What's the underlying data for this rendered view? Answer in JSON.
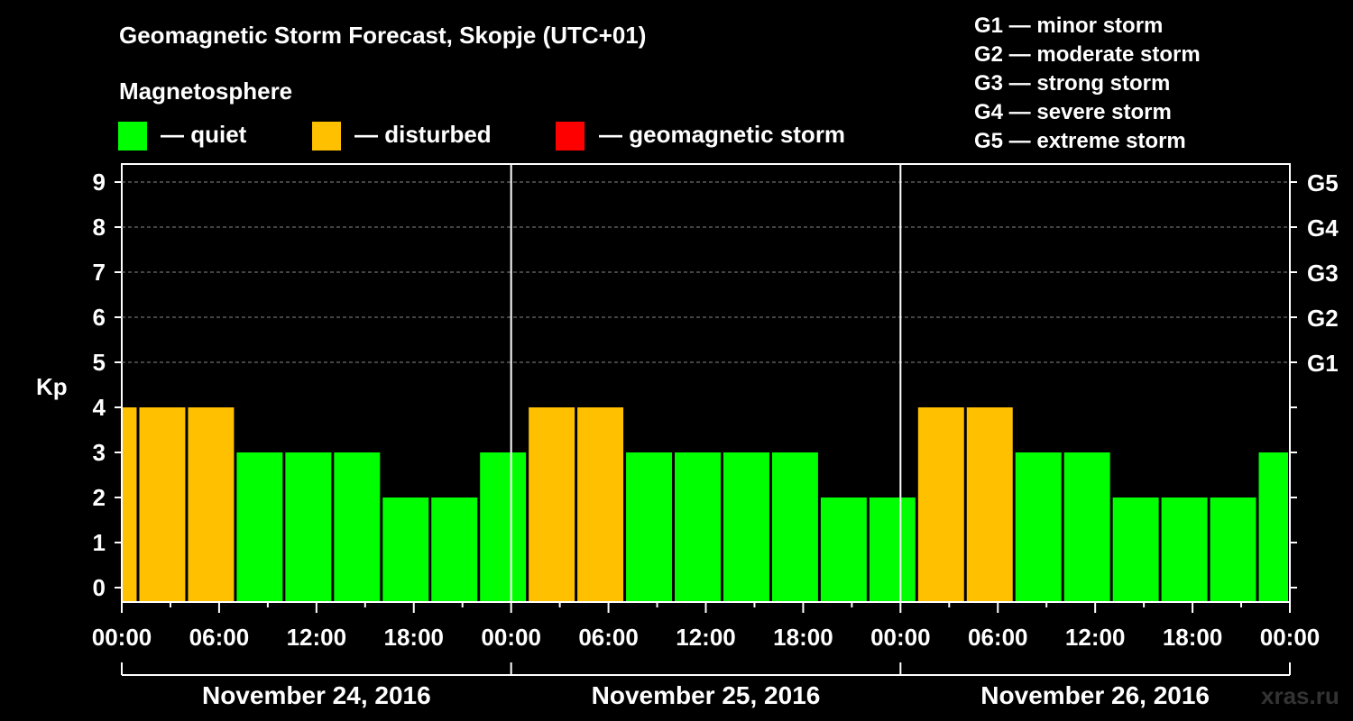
{
  "title": "Geomagnetic Storm Forecast, Skopje (UTC+01)",
  "magnetosphere": {
    "heading": "Magnetosphere",
    "legend": [
      {
        "label": "— quiet",
        "color": "#00ff00"
      },
      {
        "label": "— disturbed",
        "color": "#ffc000"
      },
      {
        "label": "— geomagnetic storm",
        "color": "#ff0000"
      }
    ]
  },
  "storm_levels": [
    "G1 — minor storm",
    "G2 — moderate storm",
    "G3 — strong storm",
    "G4 — severe storm",
    "G5 — extreme storm"
  ],
  "watermark": "xras.ru",
  "chart_data": {
    "type": "bar",
    "ylabel": "Kp",
    "ylim": [
      0,
      9
    ],
    "yticks": [
      0,
      1,
      2,
      3,
      4,
      5,
      6,
      7,
      8,
      9
    ],
    "right_axis_labels": [
      {
        "kp": 5,
        "label": "G1"
      },
      {
        "kp": 6,
        "label": "G2"
      },
      {
        "kp": 7,
        "label": "G3"
      },
      {
        "kp": 8,
        "label": "G4"
      },
      {
        "kp": 9,
        "label": "G5"
      }
    ],
    "x_tick_labels": [
      "00:00",
      "06:00",
      "12:00",
      "18:00",
      "00:00",
      "06:00",
      "12:00",
      "18:00",
      "00:00",
      "06:00",
      "12:00",
      "18:00",
      "00:00"
    ],
    "days": [
      "November 24, 2016",
      "November 25, 2016",
      "November 26, 2016"
    ],
    "grid": "horizontal dashed",
    "series": [
      {
        "values": [
          4,
          4,
          4,
          3,
          3,
          3,
          2,
          2,
          3,
          4,
          4,
          3,
          3,
          3,
          3,
          2,
          2,
          4,
          4,
          3,
          3,
          2,
          2,
          2,
          3
        ]
      }
    ],
    "bar_colors": {
      "quiet": "#00ff00",
      "disturbed": "#ffc000",
      "storm": "#ff0000"
    }
  }
}
